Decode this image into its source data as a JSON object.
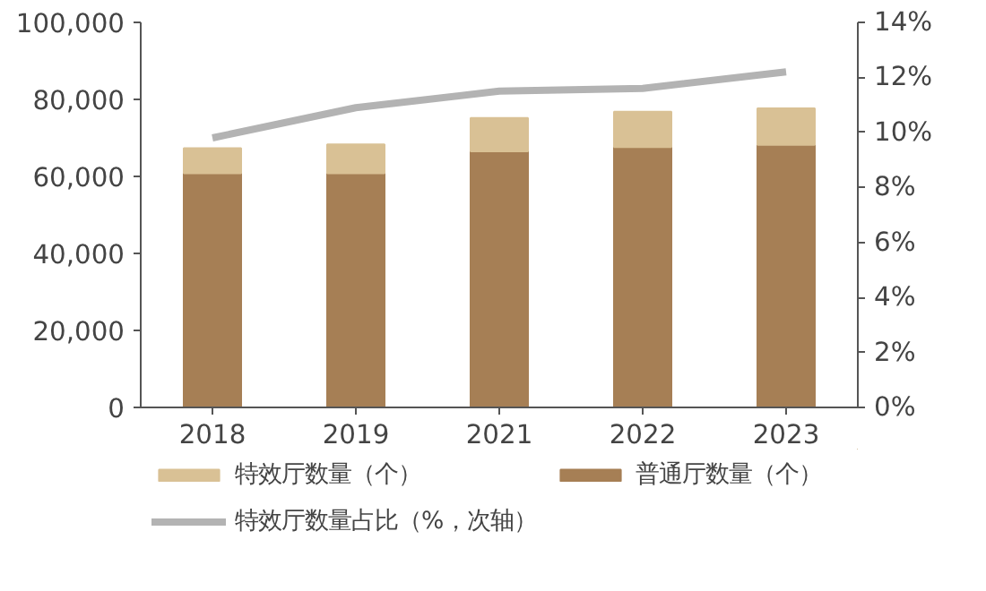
{
  "chart_data": {
    "type": "bar",
    "stacked": true,
    "categories": [
      "2018",
      "2019",
      "2021",
      "2022",
      "2023"
    ],
    "series": [
      {
        "name": "普通厅数量（个）",
        "color": "#a67f55",
        "values": [
          60800,
          60800,
          66500,
          67600,
          68200
        ]
      },
      {
        "name": "特效厅数量（个）",
        "color": "#d9c195",
        "values": [
          6500,
          7500,
          8700,
          9200,
          9500
        ]
      },
      {
        "name": "特效厅数量占比（%，次轴）",
        "color": "#b3b3b3",
        "type": "line",
        "axis": "y2",
        "values": [
          9.8,
          10.9,
          11.5,
          11.6,
          12.2
        ]
      }
    ],
    "ylim": [
      0,
      100000
    ],
    "yticks": [
      {
        "value": 0,
        "label": "0"
      },
      {
        "value": 20000,
        "label": "20,000"
      },
      {
        "value": 40000,
        "label": "40,000"
      },
      {
        "value": 60000,
        "label": "60,000"
      },
      {
        "value": 80000,
        "label": "80,000"
      },
      {
        "value": 100000,
        "label": "100,000"
      }
    ],
    "y2lim": [
      0,
      14
    ],
    "y2ticks": [
      {
        "value": 0,
        "label": "0%"
      },
      {
        "value": 2,
        "label": "2%"
      },
      {
        "value": 4,
        "label": "4%"
      },
      {
        "value": 6,
        "label": "6%"
      },
      {
        "value": 8,
        "label": "8%"
      },
      {
        "value": 10,
        "label": "10%"
      },
      {
        "value": 12,
        "label": "12%"
      },
      {
        "value": 14,
        "label": "14%"
      }
    ],
    "legend": "bottom",
    "grid": false
  }
}
